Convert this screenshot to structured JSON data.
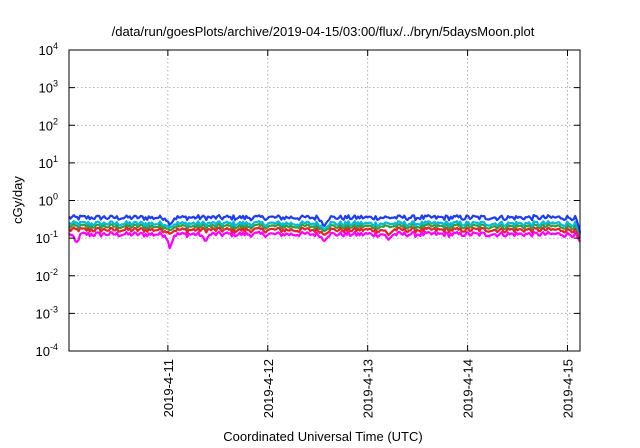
{
  "chart_data": {
    "type": "line",
    "title": "/data/run/goesPlots/archive/2019-04-15/03:00/flux/../bryn/5daysMoon.plot",
    "xlabel": "Coordinated Universal Time (UTC)",
    "ylabel": "cGy/day",
    "yscale": "log",
    "ylim": [
      0.0001,
      10000
    ],
    "xlim": [
      "2019-04-10T00:15",
      "2019-04-15T03:00"
    ],
    "grid": true,
    "legend": "none",
    "x_ticks": [
      "2019-4-11",
      "2019-4-12",
      "2019-4-13",
      "2019-4-14",
      "2019-4-15"
    ],
    "y_ticks": [
      {
        "base": "10",
        "exp": "4",
        "value": 10000
      },
      {
        "base": "10",
        "exp": "3",
        "value": 1000
      },
      {
        "base": "10",
        "exp": "2",
        "value": 100
      },
      {
        "base": "10",
        "exp": "1",
        "value": 10
      },
      {
        "base": "10",
        "exp": "0",
        "value": 1
      },
      {
        "base": "10",
        "exp": "-1",
        "value": 0.1
      },
      {
        "base": "10",
        "exp": "-2",
        "value": 0.01
      },
      {
        "base": "10",
        "exp": "-3",
        "value": 0.001
      },
      {
        "base": "10",
        "exp": "-4",
        "value": 0.0001
      }
    ],
    "series": [
      {
        "color": "#ff00ff",
        "base": 0.13,
        "dips": [
          [
            "2019-04-10T02:00",
            0.07
          ],
          [
            "2019-04-11T00:30",
            0.05
          ],
          [
            "2019-04-11T09:00",
            0.08
          ],
          [
            "2019-04-12T13:30",
            0.08
          ],
          [
            "2019-04-13T05:00",
            0.09
          ],
          [
            "2019-04-15T03:00",
            0.08
          ]
        ]
      },
      {
        "color": "#e8202a",
        "base": 0.17,
        "dips": [
          [
            "2019-04-11T00:30",
            0.13
          ],
          [
            "2019-04-12T13:30",
            0.12
          ],
          [
            "2019-04-13T05:00",
            0.12
          ],
          [
            "2019-04-15T03:00",
            0.1
          ]
        ]
      },
      {
        "color": "#3a9a3a",
        "base": 0.21,
        "dips": [
          [
            "2019-04-11T00:30",
            0.16
          ],
          [
            "2019-04-12T13:30",
            0.15
          ],
          [
            "2019-04-15T03:00",
            0.12
          ]
        ]
      },
      {
        "color": "#00bcd4",
        "base": 0.25,
        "dips": [
          [
            "2019-04-11T00:30",
            0.19
          ],
          [
            "2019-04-12T13:30",
            0.17
          ],
          [
            "2019-04-15T03:00",
            0.13
          ]
        ]
      },
      {
        "color": "#1e3cf0",
        "base": 0.36,
        "dips": [
          [
            "2019-04-11T00:30",
            0.22
          ],
          [
            "2019-04-12T13:30",
            0.2
          ],
          [
            "2019-04-15T03:00",
            0.14
          ]
        ]
      }
    ]
  }
}
